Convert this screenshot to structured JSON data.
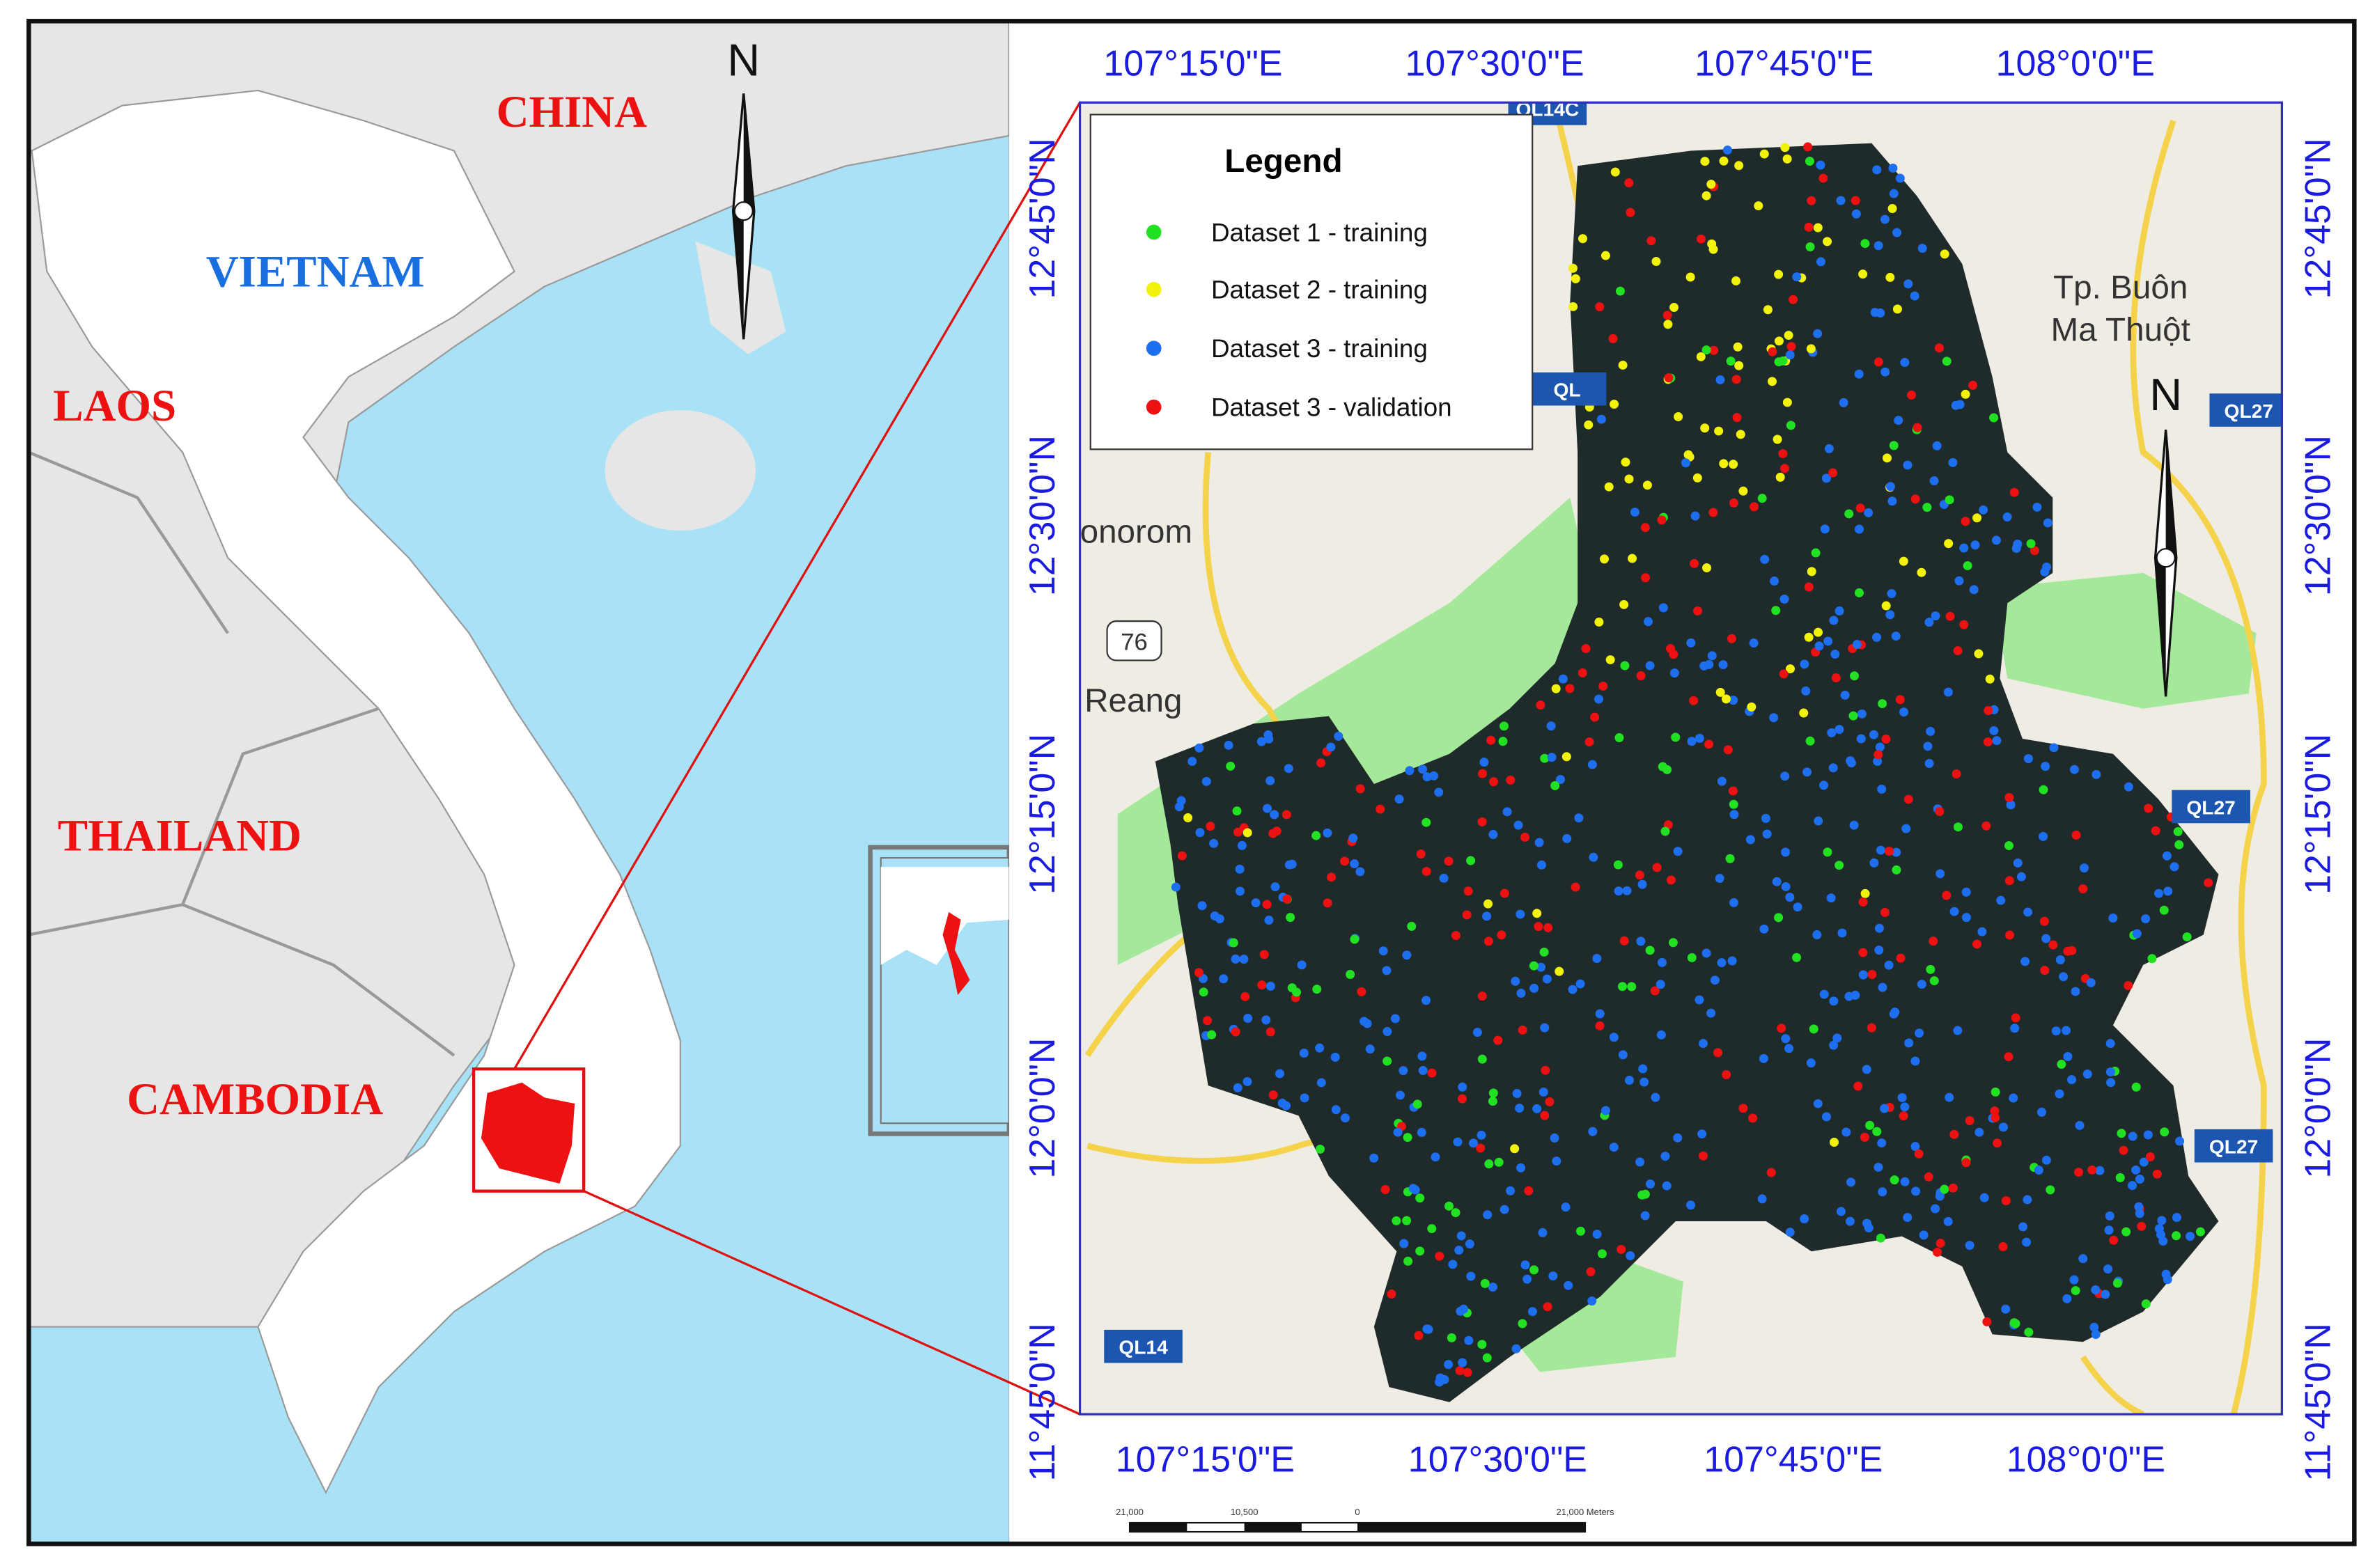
{
  "left_map": {
    "countries": [
      "CHINA",
      "VIETNAM",
      "LAOS",
      "THAILAND",
      "CAMBODIA"
    ],
    "north": "N"
  },
  "right_map": {
    "top_ticks": [
      "107°15'0\"E",
      "107°30'0\"E",
      "107°45'0\"E",
      "108°0'0\"E"
    ],
    "bottom_ticks": [
      "107°15'0\"E",
      "107°30'0\"E",
      "107°45'0\"E",
      "108°0'0\"E"
    ],
    "left_ticks": [
      "12°45'0\"N",
      "12°30'0\"N",
      "12°15'0\"N",
      "12°0'0\"N",
      "11°45'0\"N"
    ],
    "right_ticks": [
      "12°45'0\"N",
      "12°30'0\"N",
      "12°15'0\"N",
      "12°0'0\"N",
      "11°45'0\"N"
    ],
    "north": "N",
    "places": [
      "Tp. Buôn",
      "Ma Thuột",
      "onorom",
      "Reang",
      "76"
    ],
    "roads": [
      "QL14C",
      "QL",
      "QL27",
      "QL27",
      "QL27",
      "QL14"
    ],
    "scale_bar": [
      "21,000",
      "10,500",
      "0",
      "21,000 Meters"
    ],
    "legend": {
      "title": "Legend",
      "items": [
        {
          "label": "Dataset 1 - training",
          "color": "#22e022"
        },
        {
          "label": "Dataset 2 - training",
          "color": "#f2f20a"
        },
        {
          "label": "Dataset 3 - training",
          "color": "#1e6ef0"
        },
        {
          "label": "Dataset 3 - validation",
          "color": "#ee1111"
        }
      ]
    }
  }
}
